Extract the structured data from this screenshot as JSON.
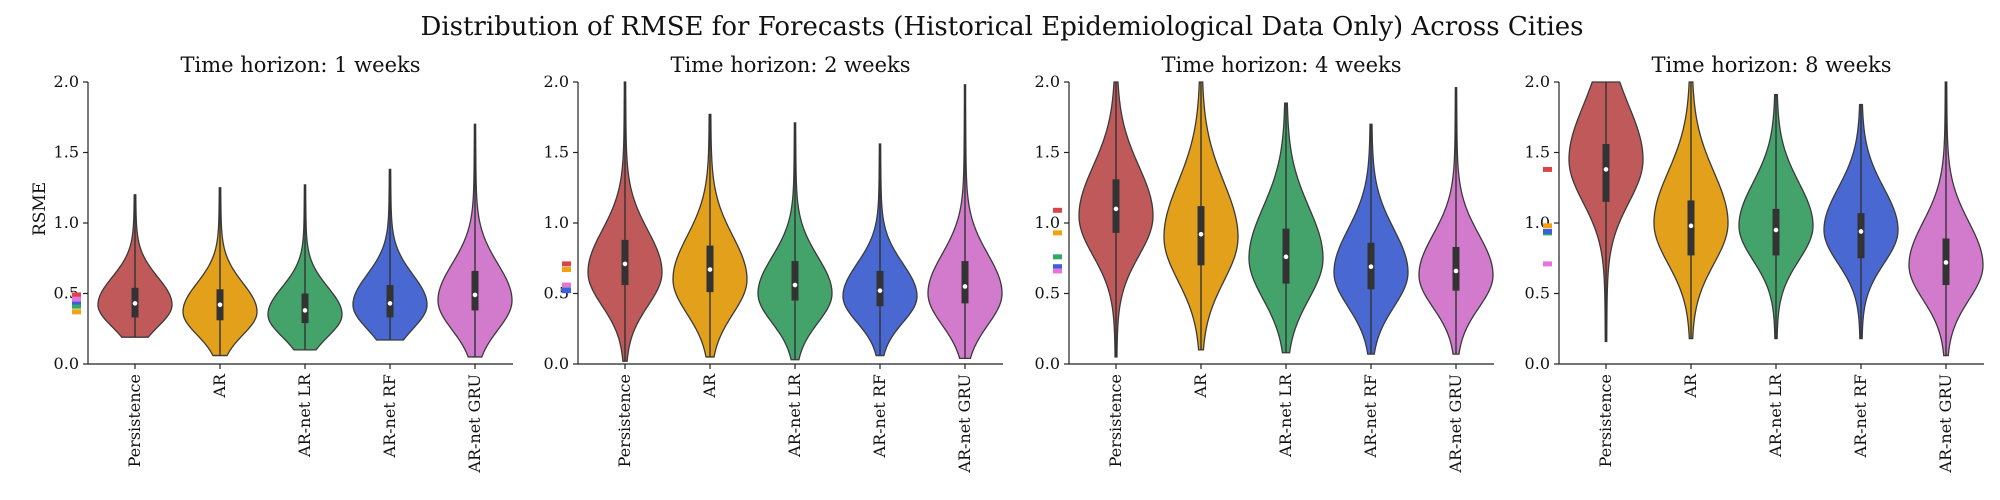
{
  "chart_data": {
    "type": "violin",
    "title": "Distribution of RMSE for Forecasts (Historical Epidemiological Data Only) Across Cities",
    "ylabel": "RSME",
    "ylim": [
      0,
      2.0
    ],
    "yticks": [
      "0.0",
      "0.5",
      "1.0",
      "1.5",
      "2.0"
    ],
    "categories": [
      "Persistence",
      "AR",
      "AR-net LR",
      "AR-net RF",
      "AR-net GRU"
    ],
    "colors": [
      "#c05a5a",
      "#e3a01b",
      "#44a36b",
      "#4a68d2",
      "#d27bcc"
    ],
    "accent_colors": [
      "#d9434a",
      "#f2a20f",
      "#2faa63",
      "#3a5fe0",
      "#e574dd"
    ],
    "grid": false,
    "panels": [
      {
        "title": "Time horizon: 1 weeks",
        "median": [
          0.43,
          0.42,
          0.38,
          0.43,
          0.49
        ],
        "q1": [
          0.33,
          0.31,
          0.29,
          0.33,
          0.38
        ],
        "q3": [
          0.54,
          0.53,
          0.5,
          0.56,
          0.66
        ],
        "min": [
          0.19,
          0.06,
          0.1,
          0.17,
          0.05
        ],
        "max": [
          1.2,
          1.25,
          1.27,
          1.38,
          1.7
        ],
        "mode": [
          0.42,
          0.37,
          0.35,
          0.42,
          0.45
        ],
        "side_markers": [
          0.49,
          0.37,
          0.41,
          0.44,
          0.46
        ]
      },
      {
        "title": "Time horizon: 2 weeks",
        "median": [
          0.71,
          0.67,
          0.56,
          0.52,
          0.55
        ],
        "q1": [
          0.56,
          0.51,
          0.45,
          0.41,
          0.43
        ],
        "q3": [
          0.88,
          0.84,
          0.73,
          0.66,
          0.73
        ],
        "min": [
          0.02,
          0.05,
          0.03,
          0.06,
          0.04
        ],
        "max": [
          2.0,
          1.77,
          1.71,
          1.56,
          1.98
        ],
        "mode": [
          0.65,
          0.6,
          0.5,
          0.48,
          0.5
        ],
        "side_markers": [
          0.71,
          0.67,
          0.55,
          0.52,
          0.56
        ]
      },
      {
        "title": "Time horizon: 4 weeks",
        "median": [
          1.1,
          0.92,
          0.76,
          0.69,
          0.66
        ],
        "q1": [
          0.93,
          0.7,
          0.57,
          0.53,
          0.52
        ],
        "q3": [
          1.31,
          1.12,
          0.96,
          0.86,
          0.83
        ],
        "min": [
          0.05,
          0.1,
          0.08,
          0.07,
          0.07
        ],
        "max": [
          2.0,
          2.0,
          1.85,
          1.7,
          1.96
        ],
        "mode": [
          1.05,
          0.9,
          0.75,
          0.65,
          0.63
        ],
        "side_markers": [
          1.09,
          0.93,
          0.76,
          0.69,
          0.66
        ]
      },
      {
        "title": "Time horizon: 8 weeks",
        "median": [
          1.38,
          0.98,
          0.95,
          0.94,
          0.72
        ],
        "q1": [
          1.15,
          0.77,
          0.77,
          0.75,
          0.56
        ],
        "q3": [
          1.56,
          1.16,
          1.1,
          1.07,
          0.89
        ],
        "min": [
          0.16,
          0.18,
          0.18,
          0.18,
          0.06
        ],
        "max": [
          2.0,
          2.0,
          1.91,
          1.84,
          2.0
        ],
        "mode": [
          1.45,
          1.0,
          0.98,
          0.95,
          0.7
        ],
        "side_markers": [
          1.38,
          0.98,
          0.93,
          0.94,
          0.71
        ]
      }
    ]
  }
}
